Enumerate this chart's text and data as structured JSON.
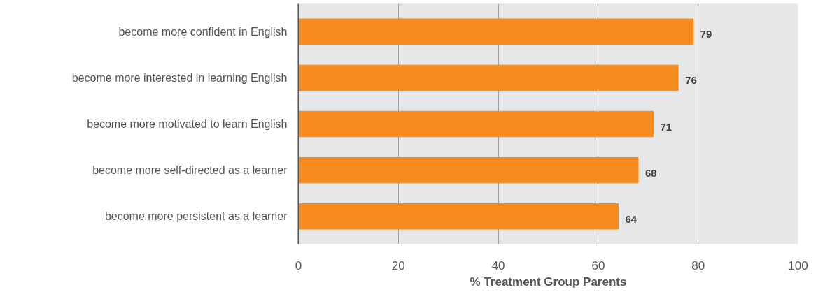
{
  "chart_data": {
    "type": "bar",
    "orientation": "horizontal",
    "xlabel": "% Treatment Group Parents",
    "categories": [
      "become more confident in English",
      "become more interested in learning English",
      "become more motivated to learn English",
      "become more self-directed as a learner",
      "become more persistent as a learner"
    ],
    "values": [
      79,
      76,
      71,
      68,
      64
    ],
    "color": "#f58a1f",
    "data_labels": true,
    "xlim": [
      0,
      100
    ],
    "xticks": [
      0,
      20,
      40,
      60,
      80,
      100
    ],
    "grid": "x"
  }
}
